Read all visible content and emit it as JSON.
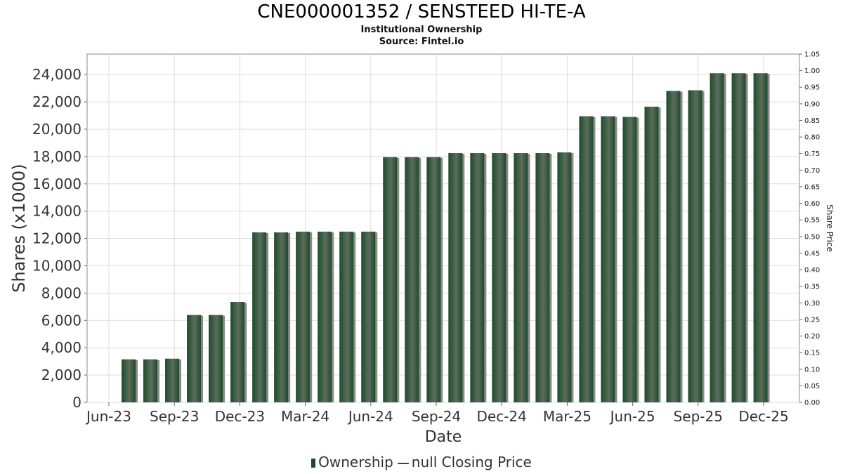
{
  "title": "CNE000001352 / SENSTEED HI-TE-A",
  "subtitle": "Institutional Ownership",
  "source": "Source: Fintel.io",
  "legend": {
    "ownership_label": "Ownership",
    "price_label": "null Closing Price"
  },
  "colors": {
    "bar": "#1f4a2a",
    "bar_highlight": "#5a6e5c",
    "bar_shadow": "#8a8a8a",
    "grid": "#dcdcdc"
  },
  "chart_data": {
    "type": "bar",
    "xlabel": "Date",
    "ylabel": "Shares (x1000)",
    "y2label": "Share Price",
    "ylim": [
      0,
      25500
    ],
    "y2lim": [
      0,
      1.05
    ],
    "grid": true,
    "legend_position": "bottom",
    "x_ticks": [
      "Jun-23",
      "Sep-23",
      "Dec-23",
      "Mar-24",
      "Jun-24",
      "Sep-24",
      "Dec-24",
      "Mar-25",
      "Jun-25",
      "Sep-25",
      "Dec-25"
    ],
    "y_ticks": [
      0,
      2000,
      4000,
      6000,
      8000,
      10000,
      12000,
      14000,
      16000,
      18000,
      20000,
      22000,
      24000
    ],
    "y_tick_labels": [
      "0",
      "2,000",
      "4,000",
      "6,000",
      "8,000",
      "10,000",
      "12,000",
      "14,000",
      "16,000",
      "18,000",
      "20,000",
      "22,000",
      "24,000"
    ],
    "y2_ticks": [
      "0.00",
      "0.05",
      "0.10",
      "0.15",
      "0.20",
      "0.25",
      "0.30",
      "0.35",
      "0.40",
      "0.45",
      "0.50",
      "0.55",
      "0.60",
      "0.65",
      "0.70",
      "0.75",
      "0.80",
      "0.85",
      "0.90",
      "0.95",
      "1.00",
      "1.05"
    ],
    "series": [
      {
        "name": "Ownership",
        "values": [
          3150,
          3150,
          3200,
          6400,
          6400,
          7350,
          12450,
          12450,
          12500,
          12500,
          12500,
          12500,
          17950,
          17950,
          17950,
          18250,
          18250,
          18250,
          18250,
          18250,
          18300,
          20950,
          20950,
          20900,
          21650,
          22800,
          22850,
          24100,
          24100,
          24100
        ]
      }
    ]
  }
}
